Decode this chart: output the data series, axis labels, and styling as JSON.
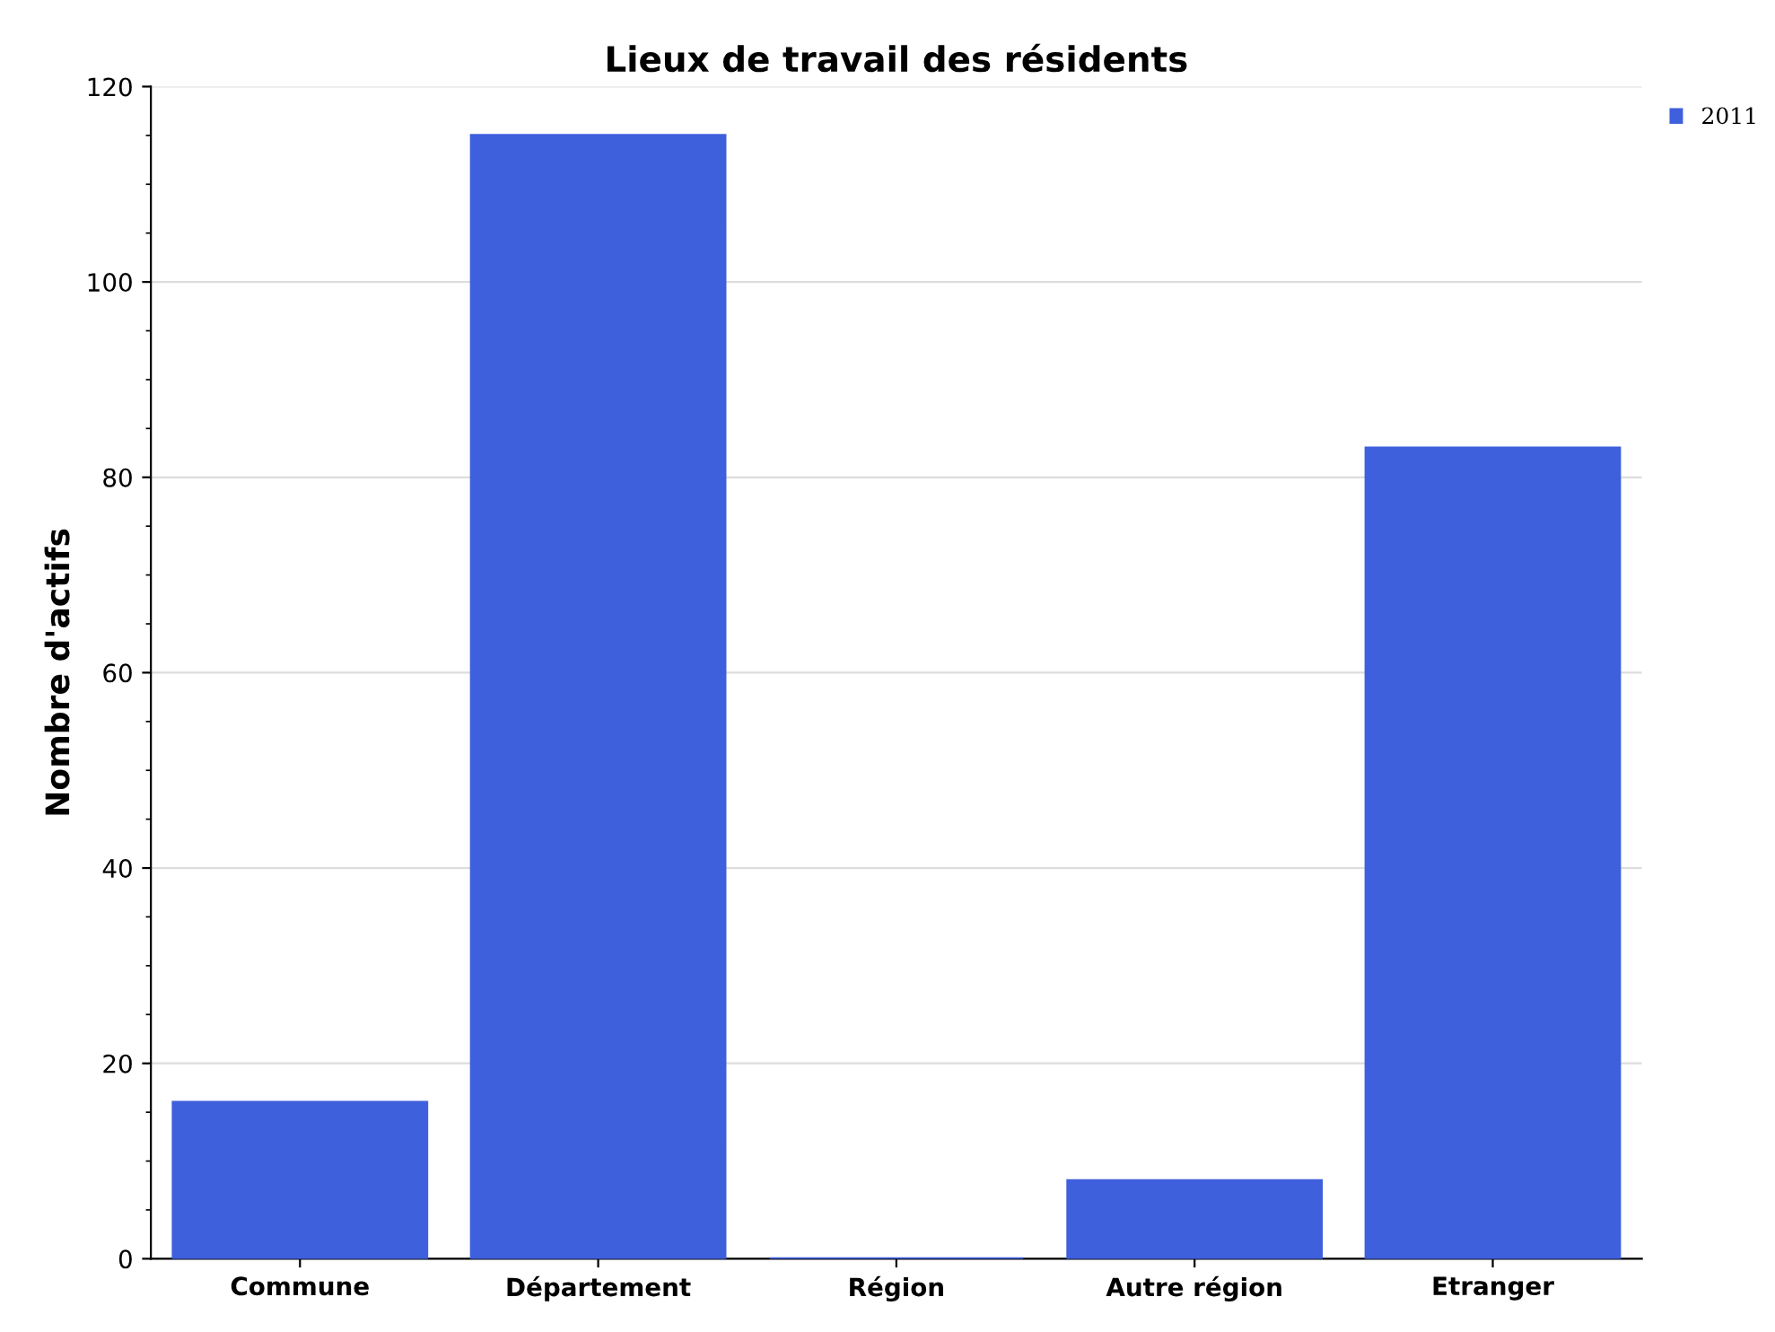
{
  "chart_data": {
    "type": "bar",
    "title": "Lieux de travail des résidents",
    "ylabel": "Nombre d'actifs",
    "categories": [
      "Commune",
      "Département",
      "Région",
      "Autre région",
      "Etranger"
    ],
    "series": [
      {
        "name": "2011",
        "color": "#3f60dc",
        "values": [
          16,
          115,
          0,
          8,
          83
        ]
      }
    ],
    "ylim": [
      0,
      120
    ],
    "yticks": [
      0,
      20,
      40,
      60,
      80,
      100,
      120
    ],
    "grid": "y",
    "legend": "top right"
  }
}
